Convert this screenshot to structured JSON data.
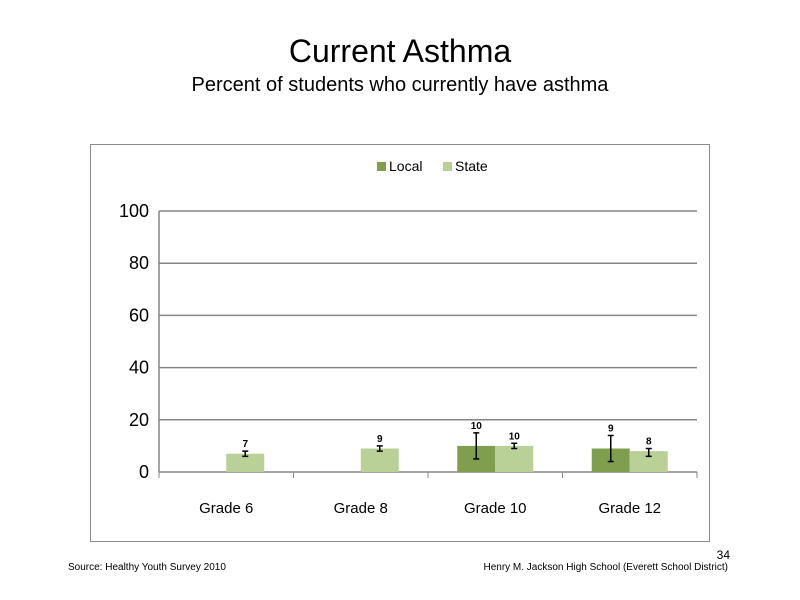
{
  "slide": {
    "title": "Current Asthma",
    "subtitle": "Percent of students who currently have asthma",
    "source": "Source: Healthy Youth Survey 2010",
    "school": "Henry M. Jackson High School (Everett School District)",
    "page_number": "34"
  },
  "chart_data": {
    "type": "bar",
    "categories": [
      "Grade 6",
      "Grade 8",
      "Grade 10",
      "Grade 12"
    ],
    "series": [
      {
        "name": "Local",
        "color": "#7f9f4f",
        "values": [
          null,
          null,
          10,
          9
        ],
        "labels": [
          "",
          "",
          "10",
          "9"
        ],
        "error_low": [
          null,
          null,
          5,
          4
        ],
        "error_high": [
          null,
          null,
          15,
          14
        ]
      },
      {
        "name": "State",
        "color": "#b9d097",
        "values": [
          7,
          9,
          10,
          8
        ],
        "labels": [
          "7",
          "9",
          "10",
          "8"
        ],
        "error_low": [
          6,
          8,
          9,
          6
        ],
        "error_high": [
          8,
          10,
          11,
          9
        ]
      }
    ],
    "ylim": [
      0,
      100
    ],
    "yticks": [
      0,
      20,
      40,
      60,
      80,
      100
    ],
    "grid": true,
    "legend_position": "top"
  }
}
